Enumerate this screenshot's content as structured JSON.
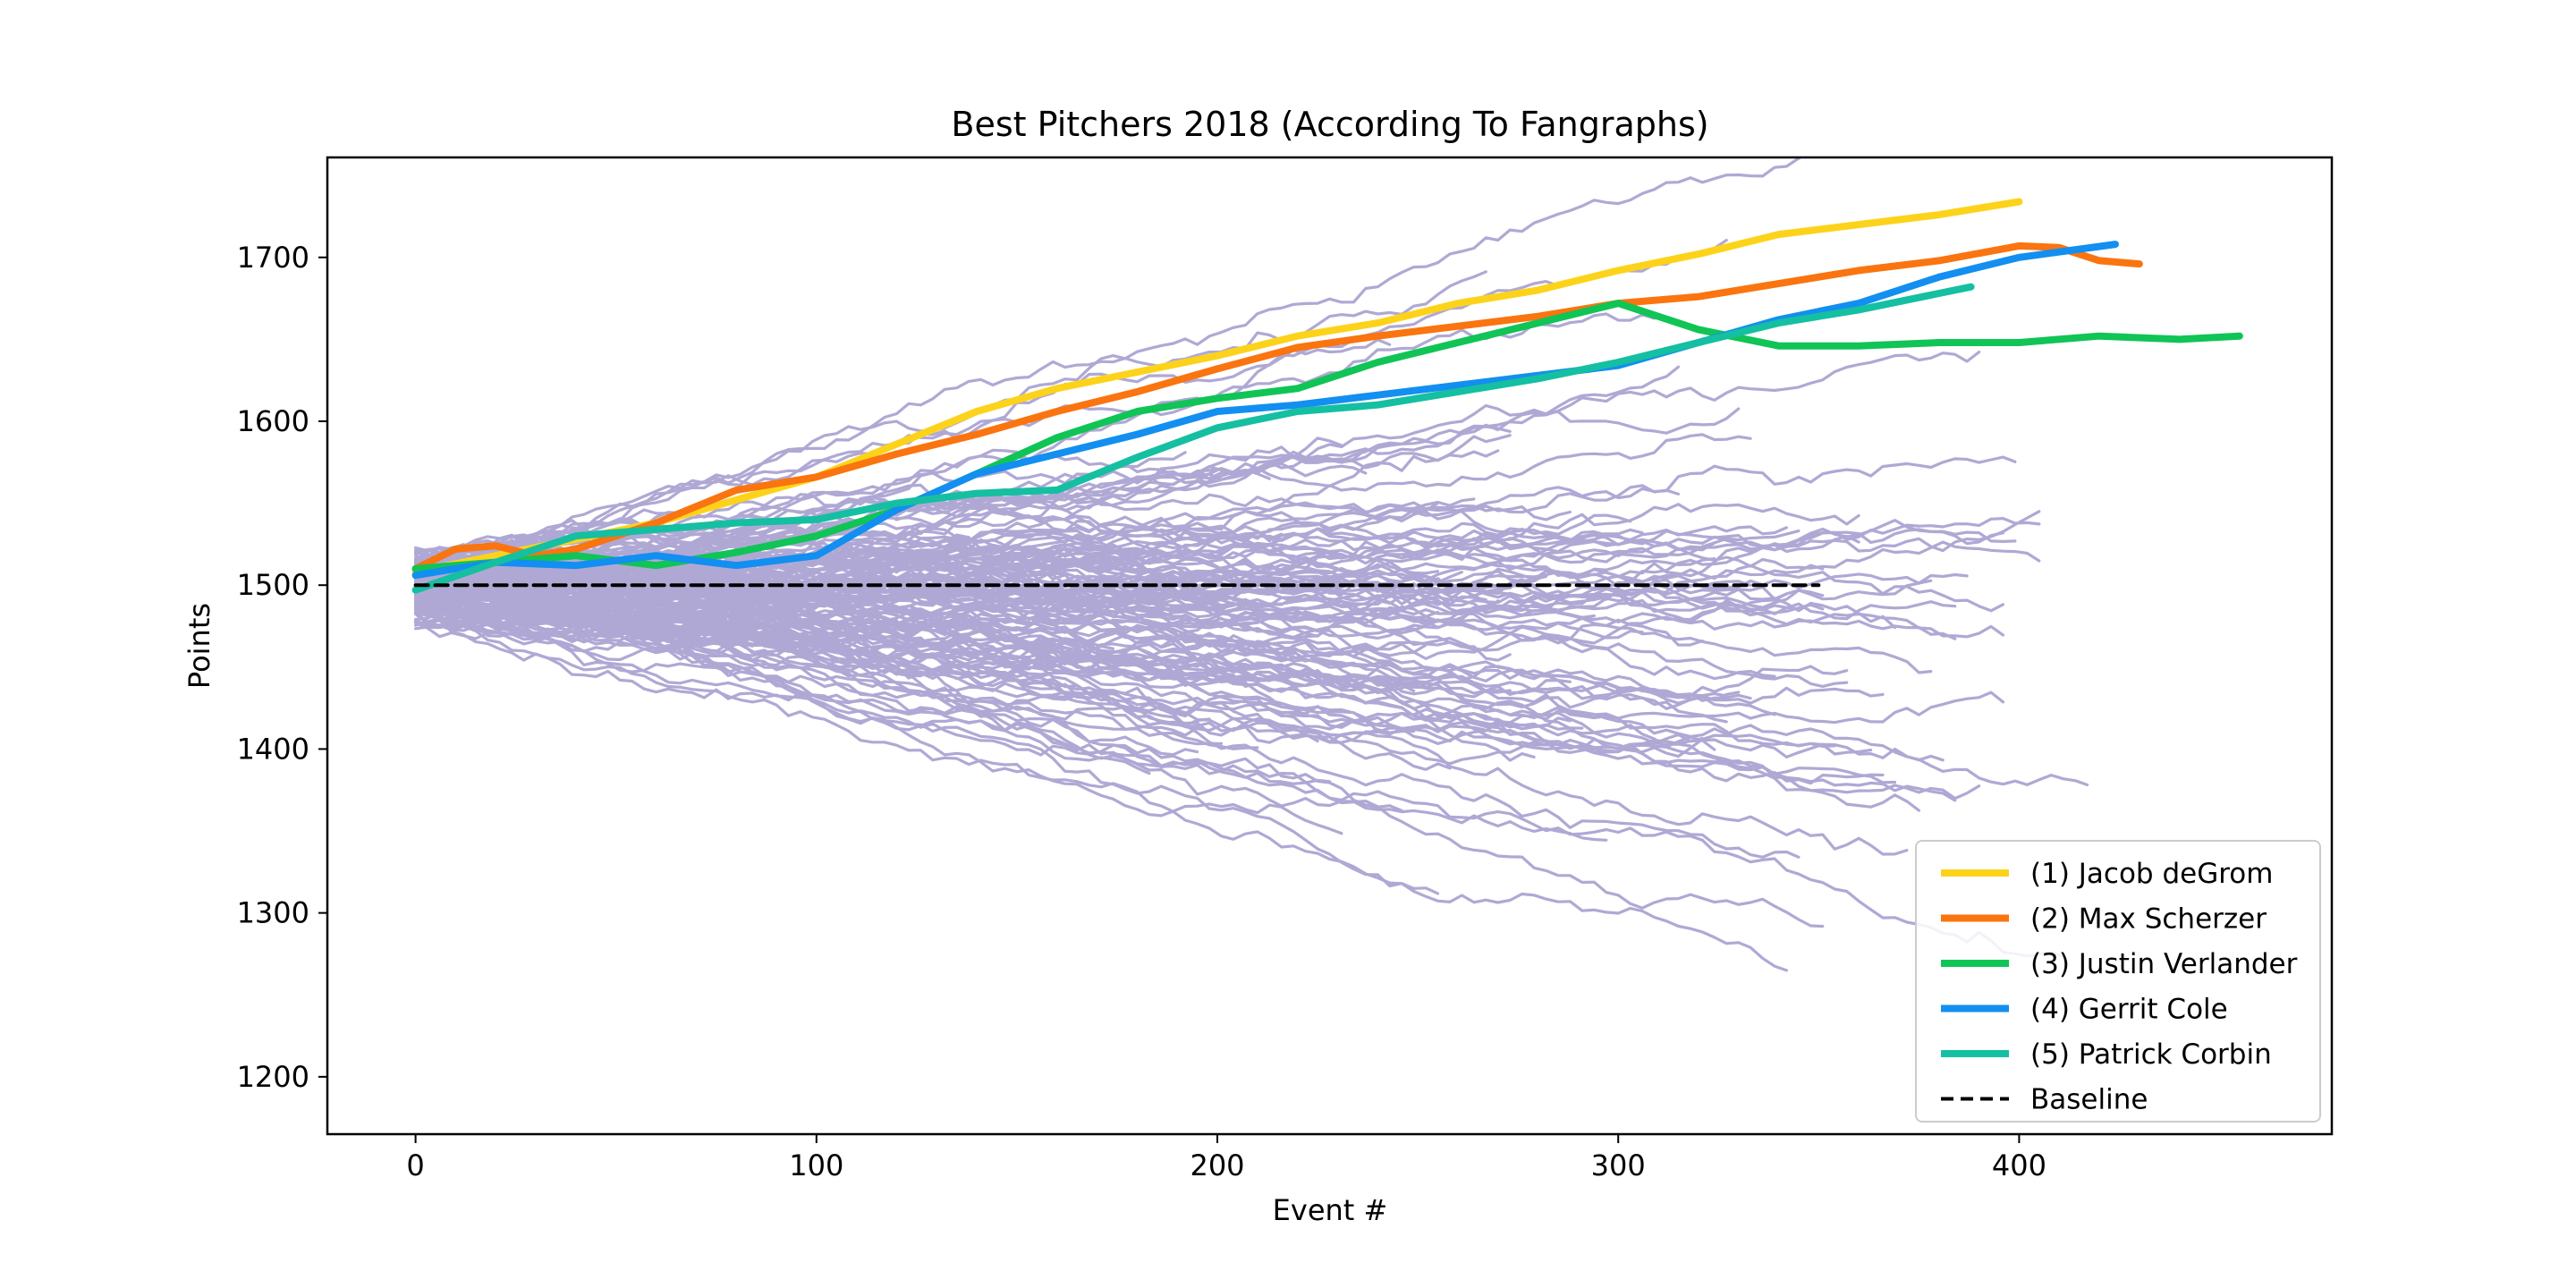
{
  "chart_data": {
    "type": "line",
    "title": "Best Pitchers 2018 (According To Fangraphs)",
    "xlabel": "Event #",
    "ylabel": "Points",
    "xlim": [
      -22,
      478
    ],
    "ylim": [
      1165,
      1761
    ],
    "x_ticks": [
      0,
      100,
      200,
      300,
      400
    ],
    "y_ticks": [
      1200,
      1300,
      1400,
      1500,
      1600,
      1700
    ],
    "grid": false,
    "legend_position": "lower-right",
    "colors": {
      "background_pitchers": "#b0a8d4",
      "baseline": "#000000",
      "axes": "#000000"
    },
    "series": [
      {
        "name": "(1) Jacob deGrom",
        "color": "#fcd31a",
        "x": [
          0,
          20,
          40,
          60,
          80,
          100,
          120,
          140,
          160,
          180,
          200,
          220,
          240,
          260,
          280,
          300,
          320,
          340,
          360,
          380,
          400
        ],
        "y": [
          1508,
          1518,
          1528,
          1538,
          1552,
          1566,
          1586,
          1606,
          1620,
          1630,
          1640,
          1652,
          1660,
          1672,
          1680,
          1692,
          1702,
          1714,
          1720,
          1726,
          1734
        ]
      },
      {
        "name": "(2) Max Scherzer",
        "color": "#fa7410",
        "x": [
          0,
          10,
          20,
          30,
          40,
          60,
          80,
          100,
          120,
          140,
          160,
          180,
          200,
          220,
          240,
          260,
          280,
          300,
          320,
          340,
          360,
          380,
          400,
          410,
          420,
          430
        ],
        "y": [
          1510,
          1522,
          1524,
          1518,
          1522,
          1538,
          1558,
          1566,
          1580,
          1592,
          1606,
          1618,
          1632,
          1645,
          1652,
          1658,
          1664,
          1672,
          1676,
          1684,
          1692,
          1698,
          1707,
          1706,
          1698,
          1696
        ]
      },
      {
        "name": "(3) Justin Verlander",
        "color": "#10c456",
        "x": [
          0,
          20,
          40,
          60,
          80,
          100,
          120,
          140,
          160,
          180,
          200,
          220,
          240,
          260,
          280,
          300,
          320,
          340,
          360,
          380,
          400,
          420,
          440,
          455
        ],
        "y": [
          1510,
          1514,
          1518,
          1512,
          1520,
          1530,
          1546,
          1568,
          1590,
          1606,
          1614,
          1620,
          1636,
          1648,
          1660,
          1672,
          1656,
          1646,
          1646,
          1648,
          1648,
          1652,
          1650,
          1652
        ]
      },
      {
        "name": "(4) Gerrit Cole",
        "color": "#128ff0",
        "x": [
          0,
          20,
          40,
          60,
          80,
          100,
          120,
          140,
          160,
          180,
          200,
          220,
          240,
          260,
          280,
          300,
          320,
          340,
          360,
          380,
          400,
          424
        ],
        "y": [
          1506,
          1514,
          1512,
          1518,
          1512,
          1518,
          1546,
          1568,
          1580,
          1592,
          1606,
          1610,
          1616,
          1622,
          1628,
          1634,
          1648,
          1662,
          1672,
          1688,
          1700,
          1708
        ]
      },
      {
        "name": "(5) Patrick Corbin",
        "color": "#15bfa1",
        "x": [
          0,
          20,
          40,
          60,
          80,
          100,
          120,
          140,
          160,
          180,
          200,
          220,
          240,
          260,
          280,
          300,
          320,
          340,
          360,
          388
        ],
        "y": [
          1497,
          1514,
          1530,
          1534,
          1538,
          1540,
          1550,
          1556,
          1558,
          1578,
          1596,
          1606,
          1610,
          1618,
          1626,
          1636,
          1648,
          1660,
          1668,
          1682
        ]
      },
      {
        "name": "Baseline",
        "color": "#000000",
        "dashed": true,
        "x": [
          0,
          350
        ],
        "y": [
          1500,
          1500
        ]
      }
    ]
  }
}
